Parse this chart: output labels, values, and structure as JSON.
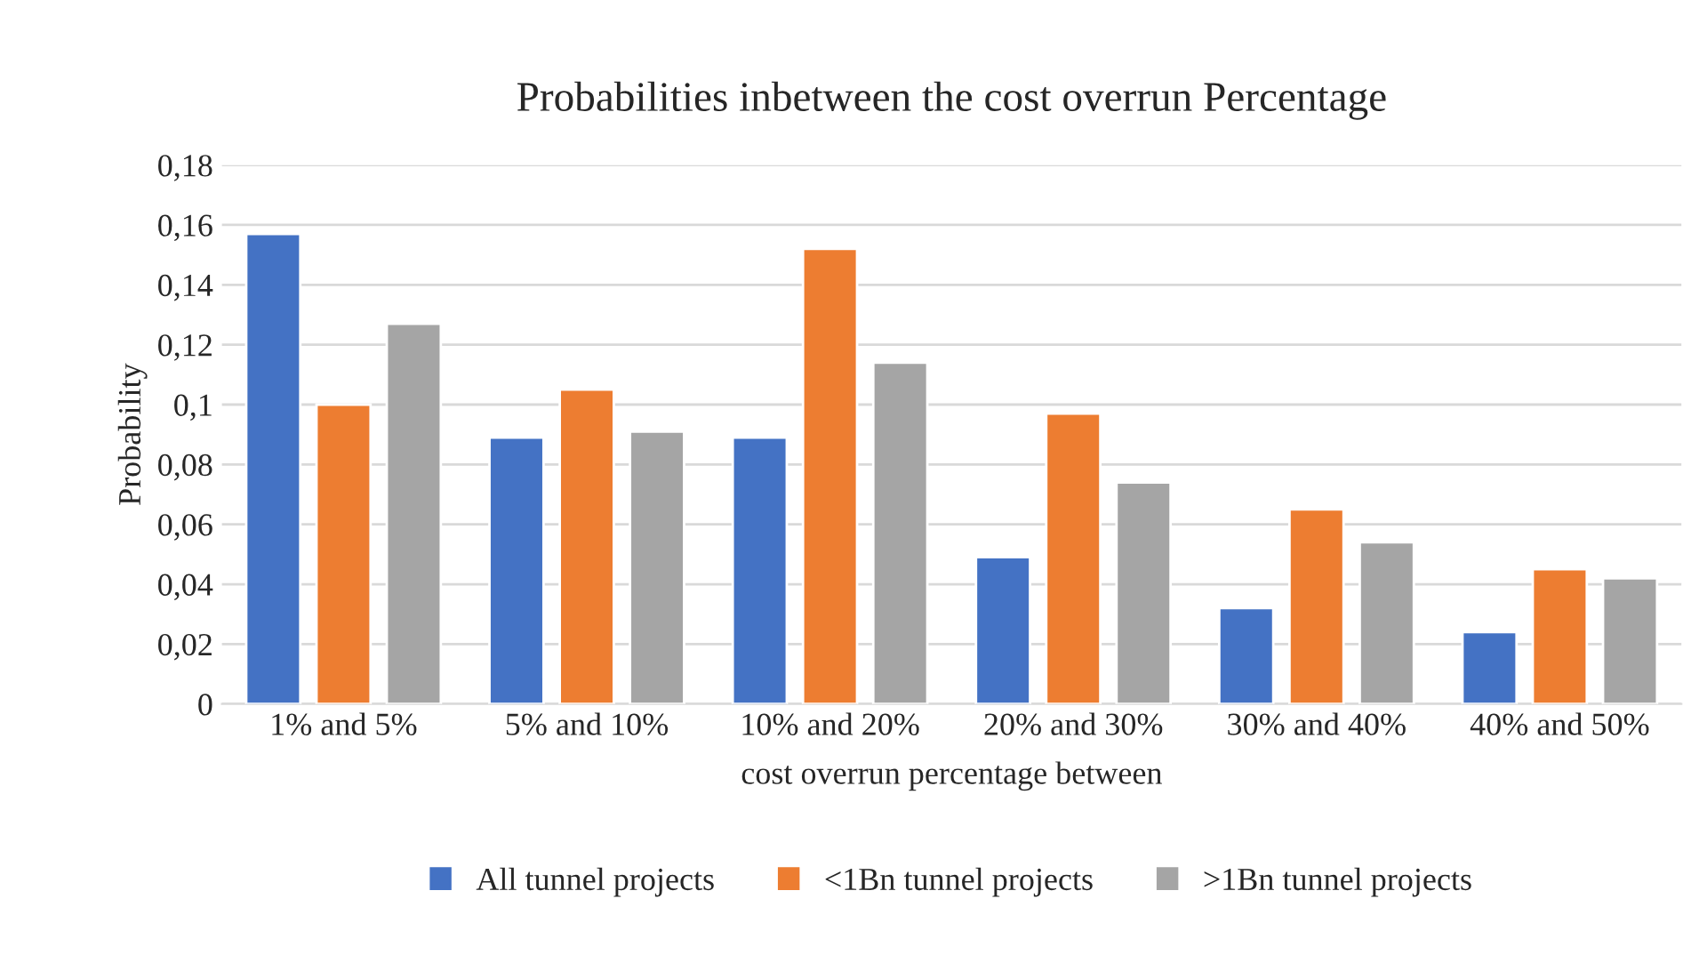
{
  "chart_data": {
    "type": "bar",
    "title": "Probabilities inbetween the cost overrun Percentage",
    "xlabel": "cost overrun percentage between",
    "ylabel": "Probability",
    "categories": [
      "1% and 5%",
      "5% and 10%",
      "10% and 20%",
      "20% and 30%",
      "30% and 40%",
      "40% and 50%"
    ],
    "series": [
      {
        "name": "All tunnel projects",
        "color": "#4472c4",
        "values": [
          0.157,
          0.089,
          0.089,
          0.049,
          0.032,
          0.024
        ]
      },
      {
        "name": "<1Bn tunnel projects",
        "color": "#ed7d31",
        "values": [
          0.1,
          0.105,
          0.152,
          0.097,
          0.065,
          0.045
        ]
      },
      {
        "name": ">1Bn tunnel projects",
        "color": "#a5a5a5",
        "values": [
          0.127,
          0.091,
          0.114,
          0.074,
          0.054,
          0.042
        ]
      }
    ],
    "ylim": [
      0,
      0.18
    ],
    "yticks": [
      0,
      {
        "value": 0.02,
        "label": "0,02"
      },
      {
        "value": 0.04,
        "label": "0,04"
      },
      {
        "value": 0.06,
        "label": "0,06"
      },
      {
        "value": 0.08,
        "label": "0,08"
      },
      {
        "value": 0.1,
        "label": "0,1"
      },
      {
        "value": 0.12,
        "label": "0,12"
      },
      {
        "value": 0.14,
        "label": "0,14"
      },
      {
        "value": 0.16,
        "label": "0,16"
      },
      {
        "value": 0.18,
        "label": "0,18"
      }
    ],
    "grid": "y",
    "legend": "bottom"
  }
}
